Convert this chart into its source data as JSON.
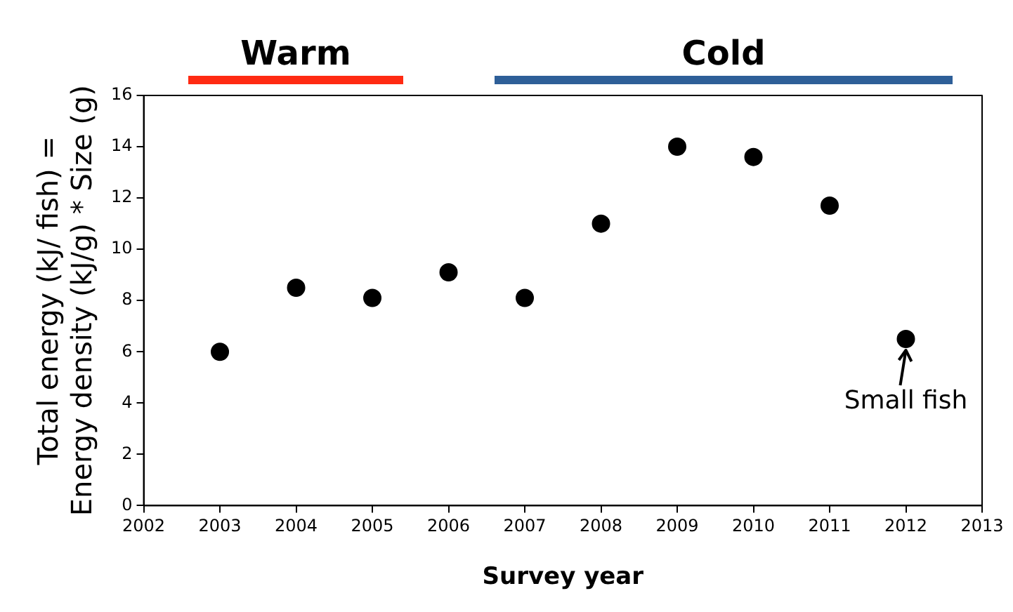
{
  "chart_data": {
    "type": "scatter",
    "xlabel": "Survey year",
    "ylabel": "Total energy (kJ/ fish) =\nEnergy density (kJ/g) * Size (g)",
    "x": [
      2003,
      2004,
      2005,
      2006,
      2007,
      2008,
      2009,
      2010,
      2011,
      2012
    ],
    "series": [
      {
        "color": "#000000",
        "values": [
          6.0,
          8.5,
          8.1,
          9.1,
          8.1,
          11.0,
          14.0,
          13.6,
          11.7,
          6.5
        ]
      }
    ],
    "xlim": [
      2002,
      2013
    ],
    "xticks": [
      2002,
      2003,
      2004,
      2005,
      2006,
      2007,
      2008,
      2009,
      2010,
      2011,
      2012,
      2013
    ],
    "ylim": [
      0,
      16
    ],
    "yticks": [
      0,
      2,
      4,
      6,
      8,
      10,
      12,
      14,
      16
    ],
    "annotations": [
      "Warm",
      "Cold",
      {
        "text": "Small fish",
        "x": 2012,
        "y": 6.5
      }
    ],
    "marker": "circle",
    "grid": false,
    "legend": false
  }
}
